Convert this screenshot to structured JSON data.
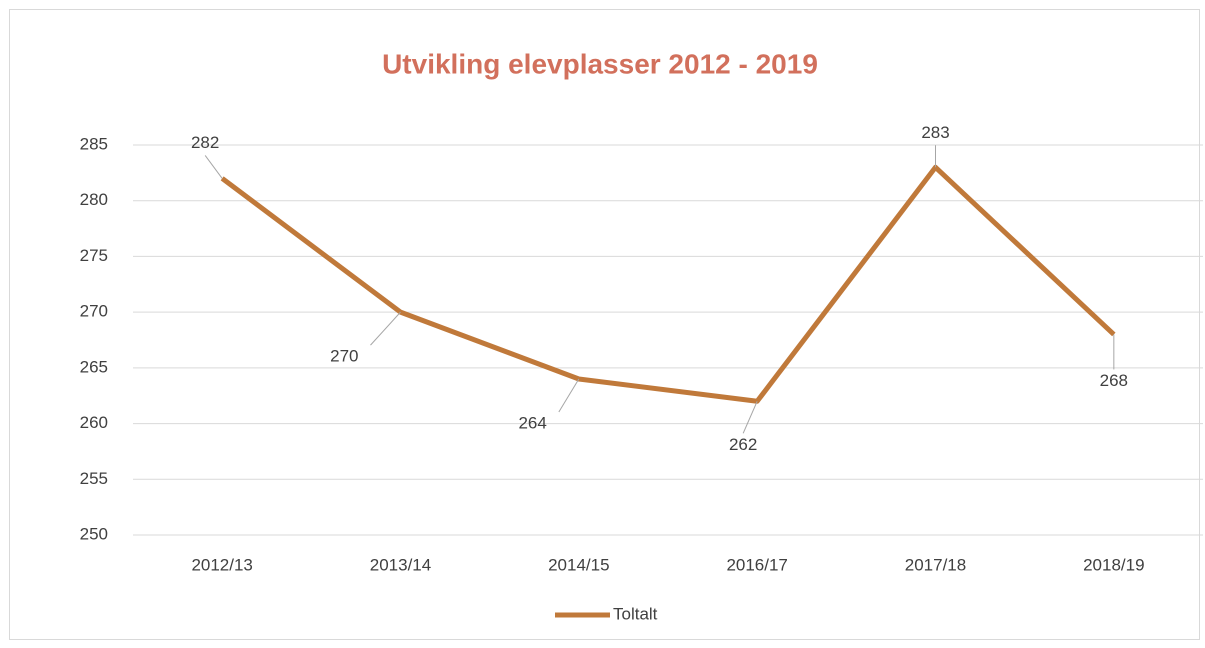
{
  "chart_data": {
    "type": "line",
    "title": "Utvikling elevplasser 2012 - 2019",
    "categories": [
      "2012/13",
      "2013/14",
      "2014/15",
      "2016/17",
      "2017/18",
      "2018/19"
    ],
    "series": [
      {
        "name": "Toltalt",
        "color": "#c0793a",
        "values": [
          282,
          270,
          264,
          262,
          283,
          268
        ]
      }
    ],
    "ylim": [
      250,
      285
    ],
    "yticks": [
      250,
      255,
      260,
      265,
      270,
      275,
      280,
      285
    ],
    "grid": true,
    "legend": "bottom"
  }
}
